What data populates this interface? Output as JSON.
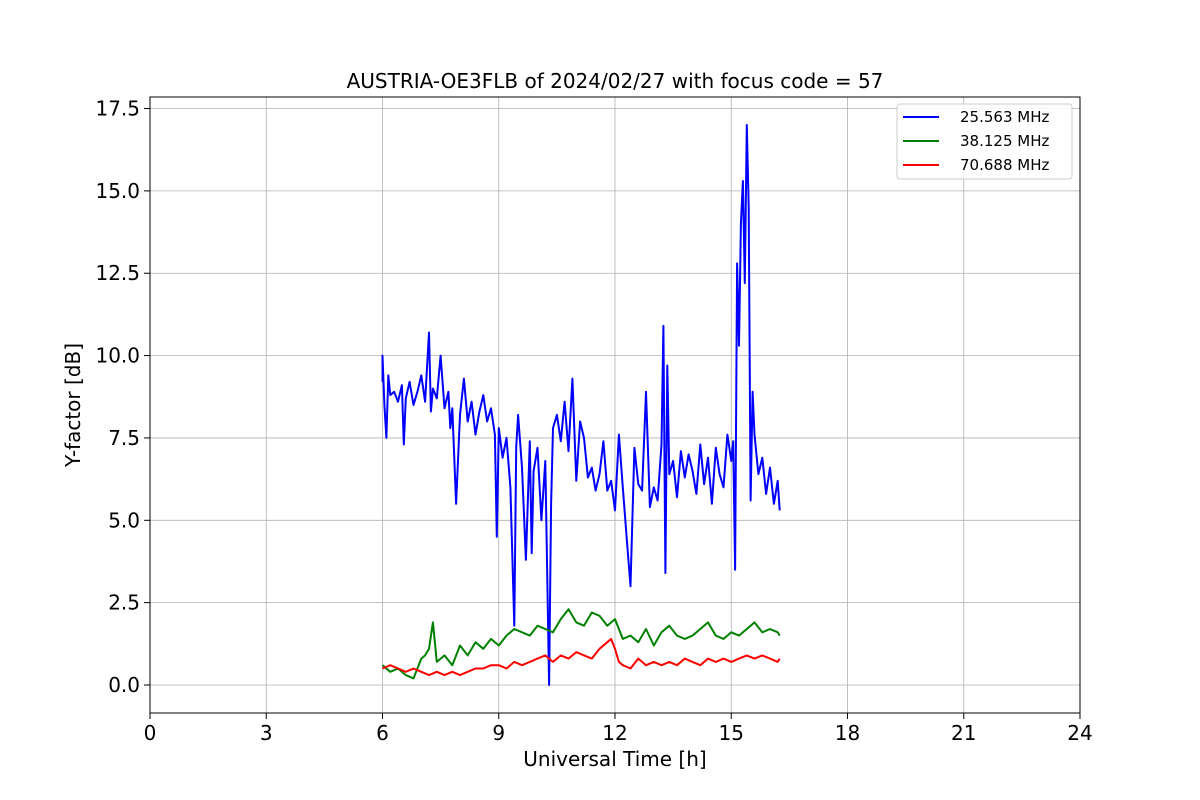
{
  "chart_data": {
    "type": "line",
    "title": "AUSTRIA-OE3FLB of 2024/02/27 with focus code = 57",
    "xlabel": "Universal Time [h]",
    "ylabel": "Y-factor [dB]",
    "xlim": [
      0,
      24
    ],
    "ylim": [
      -0.85,
      17.85
    ],
    "xticks": [
      0,
      3,
      6,
      9,
      12,
      15,
      18,
      21,
      24
    ],
    "xtick_labels": [
      "0",
      "3",
      "6",
      "9",
      "12",
      "15",
      "18",
      "21",
      "24"
    ],
    "yticks": [
      0.0,
      2.5,
      5.0,
      7.5,
      10.0,
      12.5,
      15.0,
      17.5
    ],
    "ytick_labels": [
      "0.0",
      "2.5",
      "5.0",
      "7.5",
      "10.0",
      "12.5",
      "15.0",
      "17.5"
    ],
    "grid": true,
    "legend_position": "upper-right",
    "series": [
      {
        "name": "25.563 MHz",
        "color": "#0000ff",
        "x": [
          6.0,
          6.0,
          6.05,
          6.1,
          6.15,
          6.2,
          6.3,
          6.4,
          6.5,
          6.55,
          6.6,
          6.7,
          6.8,
          6.9,
          7.0,
          7.1,
          7.2,
          7.25,
          7.3,
          7.4,
          7.5,
          7.6,
          7.7,
          7.75,
          7.8,
          7.9,
          8.0,
          8.1,
          8.2,
          8.3,
          8.4,
          8.5,
          8.6,
          8.7,
          8.8,
          8.9,
          8.95,
          9.0,
          9.1,
          9.2,
          9.3,
          9.4,
          9.45,
          9.5,
          9.6,
          9.7,
          9.8,
          9.85,
          9.9,
          10.0,
          10.1,
          10.2,
          10.3,
          10.35,
          10.4,
          10.5,
          10.6,
          10.7,
          10.8,
          10.9,
          11.0,
          11.1,
          11.2,
          11.3,
          11.4,
          11.5,
          11.6,
          11.7,
          11.8,
          11.9,
          12.0,
          12.1,
          12.2,
          12.3,
          12.4,
          12.5,
          12.6,
          12.7,
          12.8,
          12.9,
          13.0,
          13.1,
          13.2,
          13.25,
          13.3,
          13.35,
          13.4,
          13.5,
          13.6,
          13.7,
          13.8,
          13.9,
          14.0,
          14.1,
          14.2,
          14.3,
          14.4,
          14.5,
          14.6,
          14.7,
          14.8,
          14.9,
          15.0,
          15.05,
          15.1,
          15.15,
          15.2,
          15.25,
          15.3,
          15.35,
          15.4,
          15.45,
          15.5,
          15.55,
          15.6,
          15.7,
          15.8,
          15.9,
          16.0,
          16.1,
          16.2,
          16.25
        ],
        "y": [
          9.2,
          10.0,
          8.5,
          7.5,
          9.4,
          8.8,
          8.9,
          8.6,
          9.1,
          7.3,
          8.7,
          9.2,
          8.5,
          8.9,
          9.4,
          8.6,
          10.7,
          8.3,
          9.0,
          8.7,
          10.0,
          8.4,
          8.9,
          7.8,
          8.4,
          5.5,
          8.2,
          9.3,
          8.0,
          8.6,
          7.6,
          8.3,
          8.8,
          8.0,
          8.4,
          7.6,
          4.5,
          7.8,
          6.9,
          7.5,
          6.0,
          1.8,
          7.2,
          8.2,
          6.6,
          3.8,
          7.4,
          4.0,
          6.5,
          7.2,
          5.0,
          6.8,
          0.0,
          5.5,
          7.8,
          8.2,
          7.4,
          8.6,
          7.1,
          9.3,
          6.2,
          8.0,
          7.5,
          6.3,
          6.6,
          5.9,
          6.4,
          7.4,
          5.9,
          6.2,
          5.3,
          7.6,
          6.0,
          4.5,
          3.0,
          7.2,
          6.1,
          5.9,
          8.9,
          5.4,
          6.0,
          5.6,
          7.3,
          10.9,
          3.4,
          9.7,
          6.4,
          6.8,
          5.7,
          7.1,
          6.3,
          7.0,
          6.5,
          5.8,
          7.3,
          6.1,
          6.9,
          5.5,
          7.2,
          6.4,
          6.0,
          7.6,
          6.8,
          7.4,
          3.5,
          12.8,
          10.3,
          14.0,
          15.3,
          12.2,
          17.0,
          14.5,
          5.6,
          8.9,
          7.6,
          6.4,
          6.9,
          5.8,
          6.6,
          5.5,
          6.2,
          5.3
        ]
      },
      {
        "name": "38.125 MHz",
        "color": "#008000",
        "x": [
          6.0,
          6.2,
          6.4,
          6.6,
          6.8,
          7.0,
          7.1,
          7.2,
          7.3,
          7.4,
          7.6,
          7.8,
          8.0,
          8.2,
          8.4,
          8.6,
          8.8,
          9.0,
          9.2,
          9.4,
          9.6,
          9.8,
          10.0,
          10.2,
          10.4,
          10.6,
          10.8,
          11.0,
          11.2,
          11.4,
          11.6,
          11.8,
          12.0,
          12.2,
          12.4,
          12.6,
          12.8,
          13.0,
          13.2,
          13.4,
          13.6,
          13.8,
          14.0,
          14.2,
          14.4,
          14.6,
          14.8,
          15.0,
          15.2,
          15.4,
          15.6,
          15.8,
          16.0,
          16.2,
          16.25
        ],
        "y": [
          0.6,
          0.4,
          0.5,
          0.3,
          0.2,
          0.8,
          0.9,
          1.1,
          1.9,
          0.7,
          0.9,
          0.6,
          1.2,
          0.9,
          1.3,
          1.1,
          1.4,
          1.2,
          1.5,
          1.7,
          1.6,
          1.5,
          1.8,
          1.7,
          1.6,
          2.0,
          2.3,
          1.9,
          1.8,
          2.2,
          2.1,
          1.8,
          2.0,
          1.4,
          1.5,
          1.3,
          1.7,
          1.2,
          1.6,
          1.8,
          1.5,
          1.4,
          1.5,
          1.7,
          1.9,
          1.5,
          1.4,
          1.6,
          1.5,
          1.7,
          1.9,
          1.6,
          1.7,
          1.6,
          1.5
        ]
      },
      {
        "name": "70.688 MHz",
        "color": "#ff0000",
        "x": [
          6.0,
          6.2,
          6.4,
          6.6,
          6.8,
          7.0,
          7.2,
          7.4,
          7.6,
          7.8,
          8.0,
          8.2,
          8.4,
          8.6,
          8.8,
          9.0,
          9.2,
          9.4,
          9.6,
          9.8,
          10.0,
          10.2,
          10.4,
          10.6,
          10.8,
          11.0,
          11.2,
          11.4,
          11.6,
          11.8,
          11.9,
          12.0,
          12.1,
          12.2,
          12.4,
          12.6,
          12.8,
          13.0,
          13.2,
          13.4,
          13.6,
          13.8,
          14.0,
          14.2,
          14.4,
          14.6,
          14.8,
          15.0,
          15.2,
          15.4,
          15.6,
          15.8,
          16.0,
          16.2,
          16.25
        ],
        "y": [
          0.5,
          0.6,
          0.5,
          0.4,
          0.5,
          0.4,
          0.3,
          0.4,
          0.3,
          0.4,
          0.3,
          0.4,
          0.5,
          0.5,
          0.6,
          0.6,
          0.5,
          0.7,
          0.6,
          0.7,
          0.8,
          0.9,
          0.7,
          0.9,
          0.8,
          1.0,
          0.9,
          0.8,
          1.1,
          1.3,
          1.4,
          1.1,
          0.7,
          0.6,
          0.5,
          0.8,
          0.6,
          0.7,
          0.6,
          0.7,
          0.6,
          0.8,
          0.7,
          0.6,
          0.8,
          0.7,
          0.8,
          0.7,
          0.8,
          0.9,
          0.8,
          0.9,
          0.8,
          0.7,
          0.8
        ]
      }
    ]
  }
}
